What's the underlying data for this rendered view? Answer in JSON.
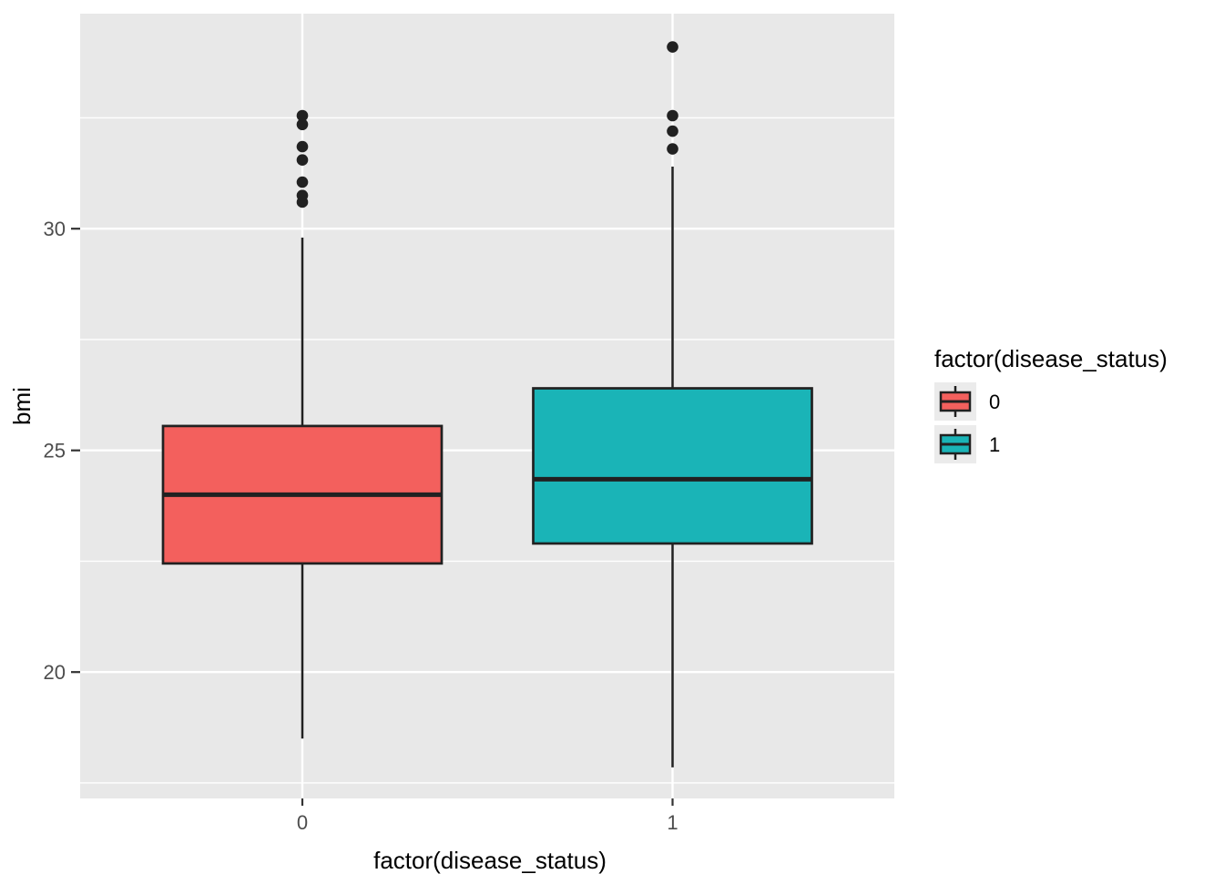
{
  "figure": {
    "background": "#FFFFFF",
    "panel_background": "#E8E8E8",
    "grid_color": "#FFFFFF",
    "tick_label_color": "#4D4D4D",
    "axis_title_color": "#000000",
    "line_color": "#212121",
    "tick_mark_color": "#333333",
    "legend_key_background": "#EBEBEB"
  },
  "chart_data": {
    "type": "boxplot",
    "title": "",
    "xlabel": "factor(disease_status)",
    "ylabel": "bmi",
    "categories": [
      "0",
      "1"
    ],
    "y_ticks": [
      20,
      25,
      30
    ],
    "y_minor_gridlines": [
      17.5,
      22.5,
      27.5,
      32.5
    ],
    "ylim": [
      17.15,
      34.85
    ],
    "grid": "on",
    "legend": {
      "position": "right",
      "title": "factor(disease_status)",
      "entries": [
        {
          "label": "0",
          "color": "#F3605D"
        },
        {
          "label": "1",
          "color": "#1AB4B7"
        }
      ]
    },
    "series": [
      {
        "category": "0",
        "color": "#F3605D",
        "min": 18.5,
        "q1": 22.45,
        "median": 24.0,
        "q3": 25.55,
        "max": 29.8,
        "outliers": [
          30.6,
          30.75,
          31.05,
          31.55,
          31.85,
          32.35,
          32.55
        ]
      },
      {
        "category": "1",
        "color": "#1AB4B7",
        "min": 17.85,
        "q1": 22.9,
        "median": 24.35,
        "q3": 26.4,
        "max": 31.4,
        "outliers": [
          31.8,
          32.2,
          32.55,
          34.1
        ]
      }
    ]
  }
}
